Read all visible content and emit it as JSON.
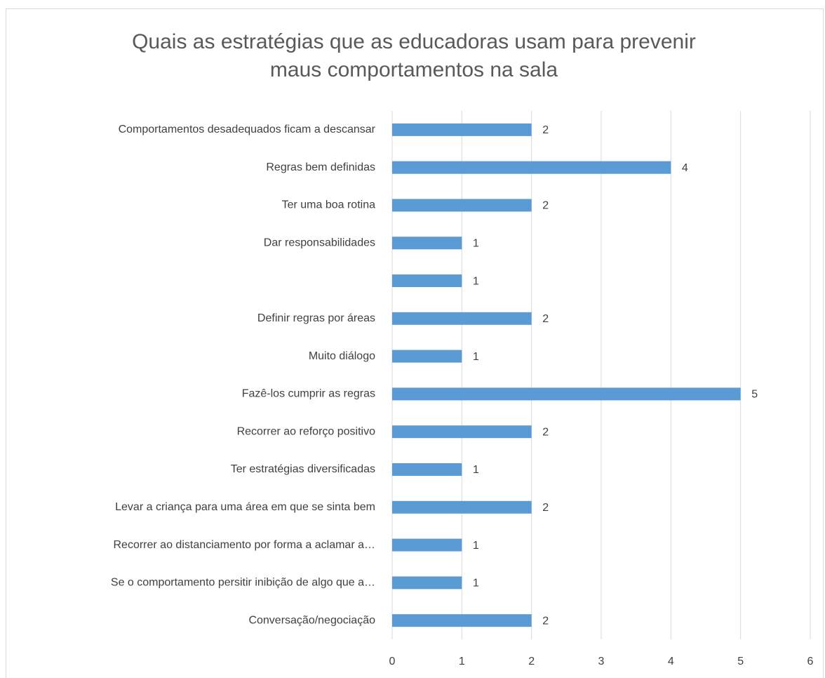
{
  "chart_data": {
    "type": "bar",
    "orientation": "horizontal",
    "title": "Quais as estratégias que as educadoras usam para prevenir maus comportamentos na sala",
    "categories": [
      "Comportamentos desadequados ficam a descansar",
      "Regras bem definidas",
      "Ter uma boa rotina",
      "Dar responsabilidades",
      null,
      "Definir regras por áreas",
      "Muito diálogo",
      "Fazê-los cumprir as regras",
      "Recorrer ao reforço positivo",
      "Ter estratégias diversificadas",
      "Levar a criança para uma área em que se sinta bem",
      "Recorrer ao distanciamento por forma a aclamar a…",
      "Se o comportamento persitir inibição de algo que a…",
      "Conversação/negociação"
    ],
    "values": [
      2,
      4,
      2,
      1,
      1,
      2,
      1,
      5,
      2,
      1,
      2,
      1,
      1,
      2
    ],
    "color": "#5b9bd5",
    "xlim": [
      0,
      6
    ],
    "xticks": [
      0,
      1,
      2,
      3,
      4,
      5,
      6
    ],
    "grid": true
  }
}
